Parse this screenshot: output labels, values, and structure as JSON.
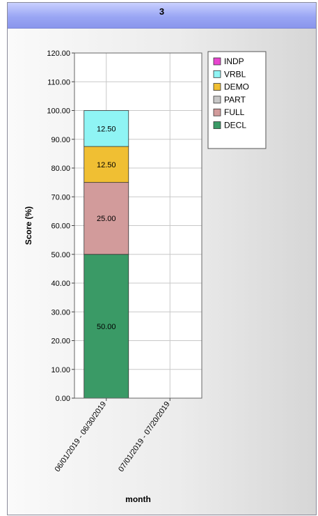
{
  "panel": {
    "title": "3"
  },
  "chart_data": {
    "type": "bar",
    "stacked": true,
    "categories": [
      "06/01/2019 - 06/30/2019",
      "07/01/2019 - 07/20/2019"
    ],
    "xlabel": "month",
    "ylabel": "Score (%)",
    "ylim": [
      0,
      120
    ],
    "ytick_step": 10,
    "ytick_labels": [
      "0.00",
      "10.00",
      "20.00",
      "30.00",
      "40.00",
      "50.00",
      "60.00",
      "70.00",
      "80.00",
      "90.00",
      "100.00",
      "110.00",
      "120.00"
    ],
    "grid": true,
    "legend_position": "top-right",
    "legend_order": [
      "INDP",
      "VRBL",
      "DEMO",
      "PART",
      "FULL",
      "DECL"
    ],
    "series": [
      {
        "name": "DECL",
        "color": "#3a9a66",
        "values": [
          50,
          null
        ],
        "labels": [
          "50.00",
          ""
        ]
      },
      {
        "name": "FULL",
        "color": "#d29b9b",
        "values": [
          25,
          null
        ],
        "labels": [
          "25.00",
          ""
        ]
      },
      {
        "name": "PART",
        "color": "#c8c8c8",
        "values": [
          0,
          null
        ],
        "labels": [
          "",
          ""
        ]
      },
      {
        "name": "DEMO",
        "color": "#f0bf33",
        "values": [
          12.5,
          null
        ],
        "labels": [
          "12.50",
          ""
        ]
      },
      {
        "name": "VRBL",
        "color": "#8ff4f4",
        "values": [
          12.5,
          null
        ],
        "labels": [
          "12.50",
          ""
        ]
      },
      {
        "name": "INDP",
        "color": "#e845cf",
        "values": [
          0,
          null
        ],
        "labels": [
          "",
          ""
        ]
      }
    ]
  }
}
